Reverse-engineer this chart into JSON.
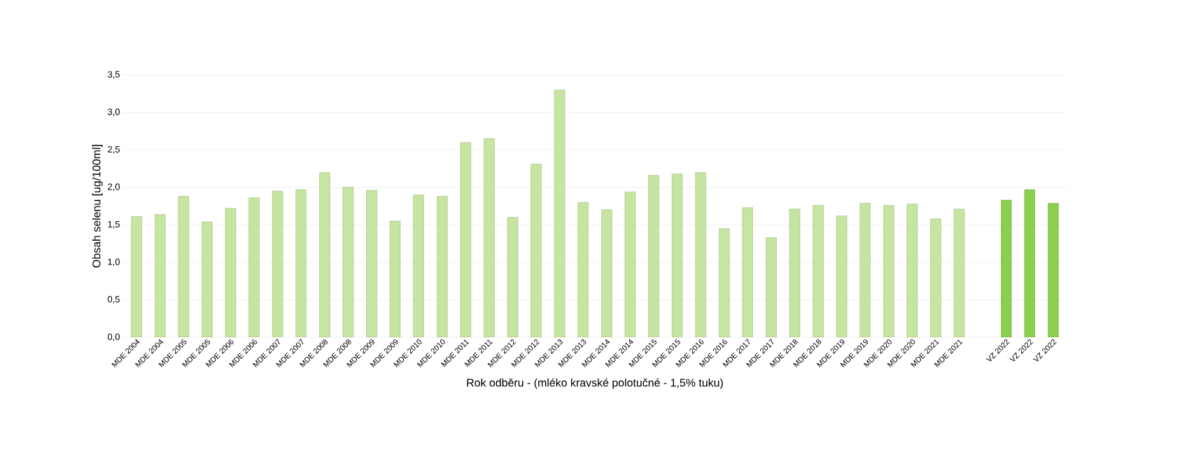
{
  "chart_data": {
    "type": "bar",
    "xlabel": "Rok odběru - (mléko kravské polotučné - 1,5% tuku)",
    "ylabel": "Obsah selenu [ug/100ml]",
    "categories": [
      "MDE 2004",
      "MDE 2004",
      "MDE 2005",
      "MDE 2005",
      "MDE 2006",
      "MDE 2006",
      "MDE 2007",
      "MDE 2007",
      "MDE 2008",
      "MDE 2008",
      "MDE 2009",
      "MDE 2009",
      "MDE 2010",
      "MDE 2010",
      "MDE 2011",
      "MDE 2011",
      "MDE 2012",
      "MDE 2012",
      "MDE 2013",
      "MDE 2013",
      "MDE 2014",
      "MDE 2014",
      "MDE 2015",
      "MDE 2015",
      "MDE 2016",
      "MDE 2016",
      "MDE 2017",
      "MDE 2017",
      "MDE 2018",
      "MDE 2018",
      "MDE 2019",
      "MDE 2019",
      "MDE 2020",
      "MDE 2020",
      "MDE 2021",
      "MDE 2021",
      null,
      "VZ 2022",
      "VZ 2022",
      "VZ 2022"
    ],
    "values": [
      1.61,
      1.64,
      1.88,
      1.54,
      1.72,
      1.86,
      1.95,
      1.97,
      2.2,
      2.0,
      1.96,
      1.55,
      1.9,
      1.88,
      2.6,
      2.65,
      1.6,
      2.31,
      3.3,
      1.8,
      1.7,
      1.94,
      2.16,
      2.18,
      2.2,
      1.45,
      1.73,
      1.33,
      1.71,
      1.76,
      1.62,
      1.79,
      1.76,
      1.78,
      1.58,
      1.71,
      null,
      1.83,
      1.97,
      1.79
    ],
    "colors": [
      "#c5e5a0",
      "#c5e5a0",
      "#c5e5a0",
      "#c5e5a0",
      "#c5e5a0",
      "#c5e5a0",
      "#c5e5a0",
      "#c5e5a0",
      "#c5e5a0",
      "#c5e5a0",
      "#c5e5a0",
      "#c5e5a0",
      "#c5e5a0",
      "#c5e5a0",
      "#c5e5a0",
      "#c5e5a0",
      "#c5e5a0",
      "#c5e5a0",
      "#c5e5a0",
      "#c5e5a0",
      "#c5e5a0",
      "#c5e5a0",
      "#c5e5a0",
      "#c5e5a0",
      "#c5e5a0",
      "#c5e5a0",
      "#c5e5a0",
      "#c5e5a0",
      "#c5e5a0",
      "#c5e5a0",
      "#c5e5a0",
      "#c5e5a0",
      "#c5e5a0",
      "#c5e5a0",
      "#c5e5a0",
      "#c5e5a0",
      null,
      "#8ccf4e",
      "#8ccf4e",
      "#8ccf4e"
    ],
    "ylim": [
      0,
      3.5
    ],
    "yticks": [
      {
        "value": 0,
        "label": "0,0"
      },
      {
        "value": 0.5,
        "label": "0,5"
      },
      {
        "value": 1,
        "label": "1,0"
      },
      {
        "value": 1.5,
        "label": "1,5"
      },
      {
        "value": 2,
        "label": "2,0"
      },
      {
        "value": 2.5,
        "label": "2,5"
      },
      {
        "value": 3,
        "label": "3,0"
      },
      {
        "value": 3.5,
        "label": "3,5"
      }
    ],
    "grid": "y"
  }
}
